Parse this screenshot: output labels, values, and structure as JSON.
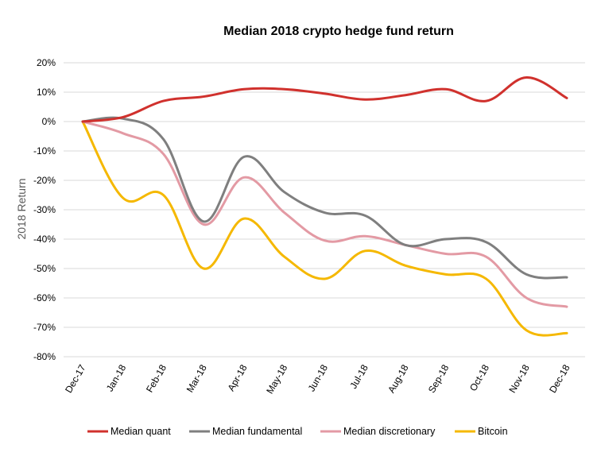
{
  "chart_data": {
    "type": "line",
    "title": "Median 2018 crypto hedge fund return",
    "xlabel": "",
    "ylabel": "2018 Return",
    "categories": [
      "Dec-17",
      "Jan-18",
      "Feb-18",
      "Mar-18",
      "Apr-18",
      "May-18",
      "Jun-18",
      "Jul-18",
      "Aug-18",
      "Sep-18",
      "Oct-18",
      "Nov-18",
      "Dec-18"
    ],
    "y_ticks": [
      "20%",
      "10%",
      "0%",
      "-10%",
      "-20%",
      "-30%",
      "-40%",
      "-50%",
      "-60%",
      "-70%",
      "-80%"
    ],
    "ylim": [
      -80,
      20
    ],
    "grid": true,
    "legend_position": "bottom",
    "series": [
      {
        "name": "Median quant",
        "color": "#d0312d",
        "values": [
          0,
          1.5,
          7,
          8.5,
          11,
          11,
          9.5,
          7.5,
          9,
          11,
          7,
          15,
          8
        ]
      },
      {
        "name": "Median fundamental",
        "color": "#7f7f7f",
        "values": [
          0,
          1,
          -6,
          -34,
          -12,
          -24,
          -31,
          -32,
          -42,
          -40,
          -41,
          -52,
          -53
        ]
      },
      {
        "name": "Median discretionary",
        "color": "#e39aa4",
        "values": [
          0,
          -4,
          -11,
          -35,
          -19,
          -31,
          -40.5,
          -39,
          -42,
          -45,
          -46,
          -60,
          -63
        ]
      },
      {
        "name": "Bitcoin",
        "color": "#f5b800",
        "values": [
          0,
          -26,
          -25,
          -50,
          -33,
          -46,
          -53.5,
          -44,
          -49,
          -52,
          -53.5,
          -71,
          -72
        ]
      }
    ]
  }
}
